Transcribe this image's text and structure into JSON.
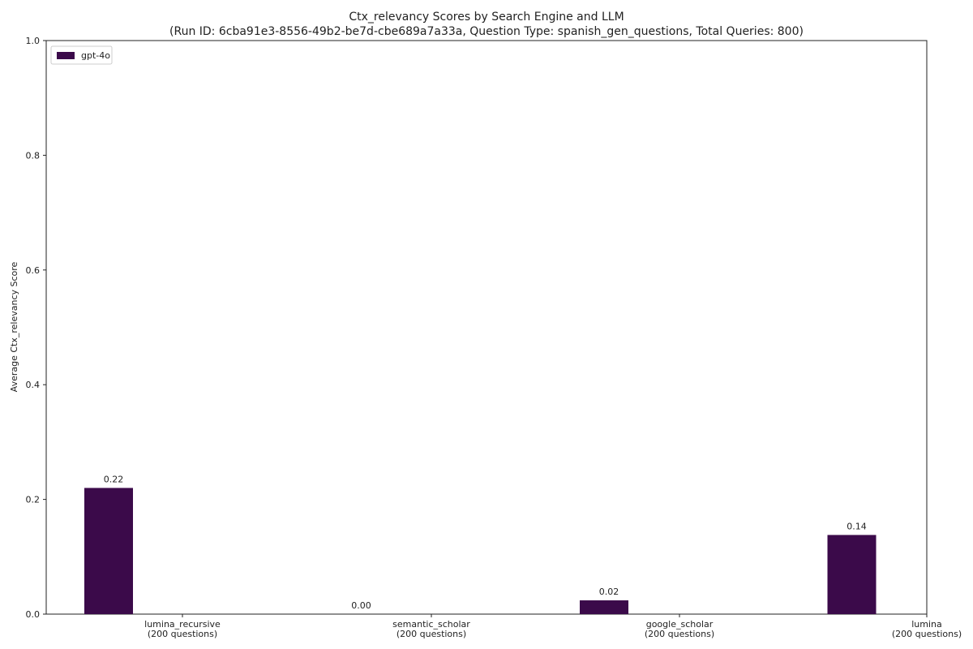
{
  "chart_data": {
    "type": "bar",
    "title": "Ctx_relevancy Scores by Search Engine and LLM",
    "subtitle": "(Run ID: 6cba91e3-8556-49b2-be7d-cbe689a7a33a, Question Type: spanish_gen_questions, Total Queries: 800)",
    "xlabel": "",
    "ylabel": "Average Ctx_relevancy Score",
    "ylim": [
      0,
      1.0
    ],
    "yticks": [
      "0.0",
      "0.2",
      "0.4",
      "0.6",
      "0.8",
      "1.0"
    ],
    "categories": [
      {
        "name": "lumina_recursive",
        "count": "(200 questions)"
      },
      {
        "name": "semantic_scholar",
        "count": "(200 questions)"
      },
      {
        "name": "google_scholar",
        "count": "(200 questions)"
      },
      {
        "name": "lumina",
        "count": "(200 questions)"
      }
    ],
    "series": [
      {
        "name": "gpt-4o",
        "color": "#3b0a4a",
        "values": [
          0.22,
          0.0,
          0.024,
          0.138
        ],
        "labels": [
          "0.22",
          "0.00",
          "0.02",
          "0.14"
        ]
      }
    ],
    "grid": false,
    "legend": "top-left"
  }
}
